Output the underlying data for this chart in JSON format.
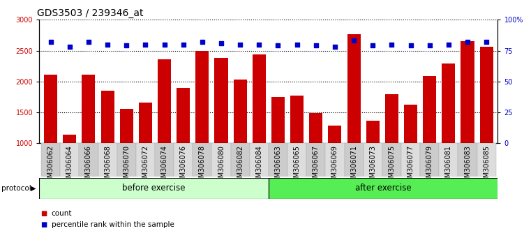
{
  "title": "GDS3503 / 239346_at",
  "categories": [
    "GSM306062",
    "GSM306064",
    "GSM306066",
    "GSM306068",
    "GSM306070",
    "GSM306072",
    "GSM306074",
    "GSM306076",
    "GSM306078",
    "GSM306080",
    "GSM306082",
    "GSM306084",
    "GSM306063",
    "GSM306065",
    "GSM306067",
    "GSM306069",
    "GSM306071",
    "GSM306073",
    "GSM306075",
    "GSM306077",
    "GSM306079",
    "GSM306081",
    "GSM306083",
    "GSM306085"
  ],
  "bar_values": [
    2110,
    1140,
    2110,
    1850,
    1560,
    1660,
    2360,
    1900,
    2500,
    2380,
    2030,
    2440,
    1750,
    1770,
    1490,
    1290,
    2770,
    1360,
    1800,
    1620,
    2090,
    2290,
    2650,
    2560
  ],
  "percentile_values": [
    82,
    78,
    82,
    80,
    79,
    80,
    80,
    80,
    82,
    81,
    80,
    80,
    79,
    80,
    79,
    78,
    83,
    79,
    80,
    79,
    79,
    80,
    82,
    82
  ],
  "bar_color": "#cc0000",
  "dot_color": "#0000cc",
  "ylim_left": [
    1000,
    3000
  ],
  "ylim_right": [
    0,
    100
  ],
  "yticks_left": [
    1000,
    1500,
    2000,
    2500,
    3000
  ],
  "yticks_right": [
    0,
    25,
    50,
    75,
    100
  ],
  "ytick_labels_right": [
    "0",
    "25",
    "50",
    "75",
    "100%"
  ],
  "group1_label": "before exercise",
  "group2_label": "after exercise",
  "group1_color": "#ccffcc",
  "group2_color": "#55ee55",
  "protocol_label": "protocol",
  "legend_count": "count",
  "legend_percentile": "percentile rank within the sample",
  "grid_color": "black",
  "background_color": "white",
  "title_fontsize": 10,
  "tick_fontsize": 7,
  "n_before": 12,
  "n_after": 12
}
